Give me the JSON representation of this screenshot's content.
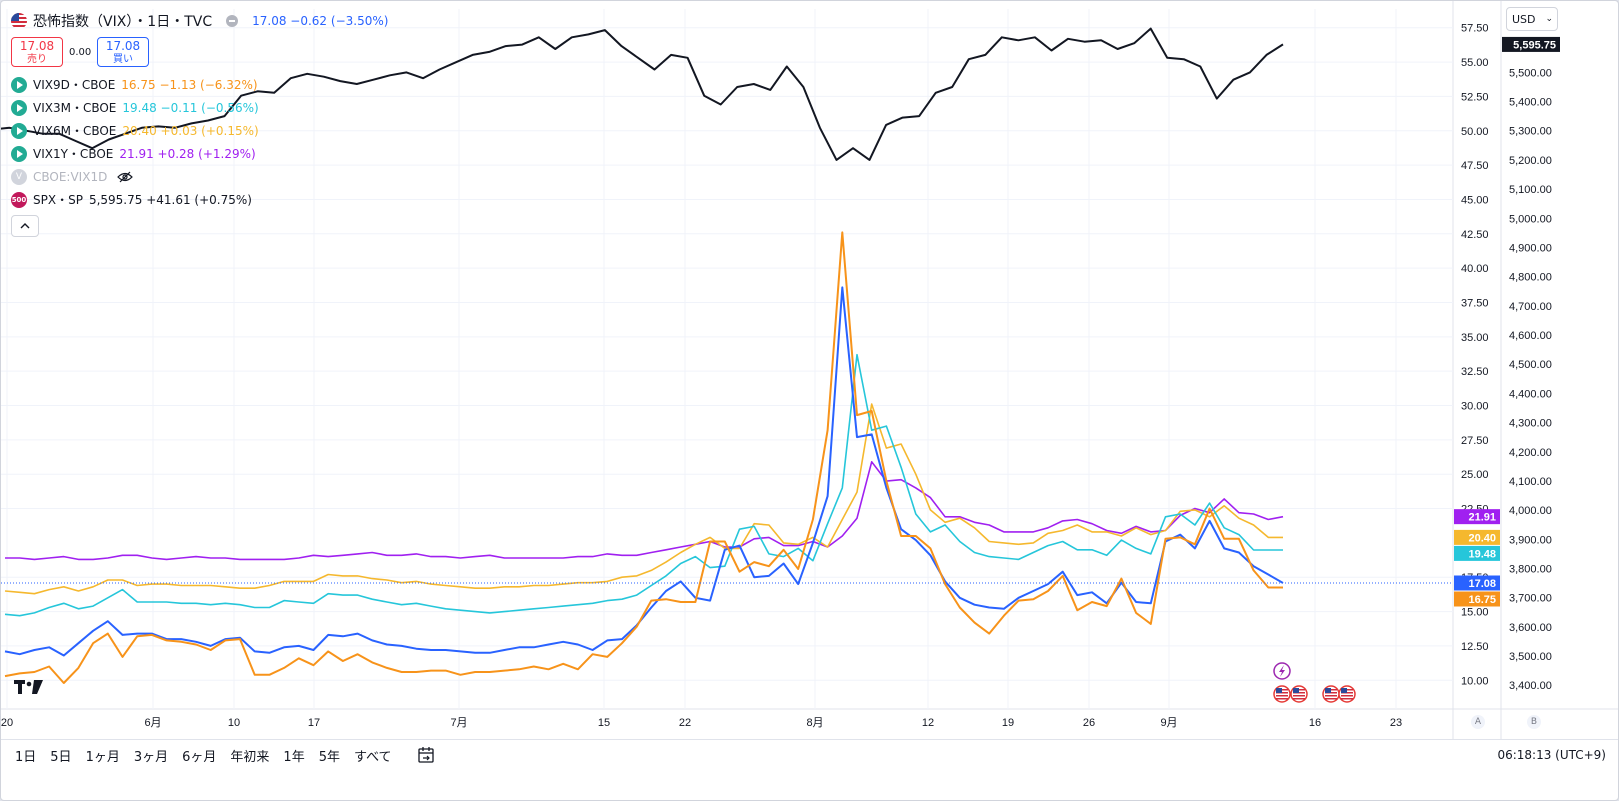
{
  "header": {
    "title": "恐怖指数（VIX）・1日・TVC",
    "last": "17.08",
    "change": "−0.62 (−3.50%)"
  },
  "trade": {
    "sell_price": "17.08",
    "sell_label": "売り",
    "spread": "0.00",
    "buy_price": "17.08",
    "buy_label": "買い"
  },
  "legend_items": [
    {
      "symbol": "VIX9D・CBOE",
      "values": "16.75 −1.13 (−6.32%)",
      "color": "#f7931a"
    },
    {
      "symbol": "VIX3M・CBOE",
      "values": "19.48 −0.11 (−0.56%)",
      "color": "#26c6da"
    },
    {
      "symbol": "VIX6M・CBOE",
      "values": "20.40 +0.03 (+0.15%)",
      "color": "#f5b82e"
    },
    {
      "symbol": "VIX1Y・CBOE",
      "values": "21.91 +0.28 (+1.29%)",
      "color": "#a020f0"
    }
  ],
  "hidden_item": {
    "icon_text": "V",
    "symbol": "CBOE:VIX1D"
  },
  "spx_item": {
    "icon_text": "500",
    "symbol": "SPX・SP",
    "values": "5,595.75 +41.61 (+0.75%)",
    "color": "#131722"
  },
  "currency": "USD",
  "ranges": [
    "1日",
    "5日",
    "1ヶ月",
    "3ヶ月",
    "6ヶ月",
    "年初来",
    "1年",
    "5年",
    "すべて"
  ],
  "clock": "06:18:13 (UTC+9)",
  "scale_buttons": [
    "A",
    "B"
  ],
  "chart_data": {
    "type": "line",
    "x_tick_labels": [
      "20",
      "6月",
      "10",
      "17",
      "7月",
      "15",
      "22",
      "8月",
      "12",
      "19",
      "26",
      "9月",
      "16",
      "23"
    ],
    "left_axis": {
      "ticks": [
        "57.50",
        "55.00",
        "52.50",
        "50.00",
        "47.50",
        "45.00",
        "42.50",
        "40.00",
        "37.50",
        "35.00",
        "32.50",
        "30.00",
        "27.50",
        "25.00",
        "22.50",
        "17.50",
        "15.00",
        "12.50",
        "10.00"
      ],
      "range": [
        9.0,
        58.5
      ]
    },
    "right_axis": {
      "ticks": [
        "5,500.00",
        "5,400.00",
        "5,300.00",
        "5,200.00",
        "5,100.00",
        "5,000.00",
        "4,900.00",
        "4,800.00",
        "4,700.00",
        "4,600.00",
        "4,500.00",
        "4,400.00",
        "4,300.00",
        "4,200.00",
        "4,100.00",
        "4,000.00",
        "3,900.00",
        "3,800.00",
        "3,700.00",
        "3,600.00",
        "3,500.00",
        "3,400.00"
      ],
      "range": [
        3370,
        5700
      ]
    },
    "axis_labels": [
      {
        "text": "21.91",
        "color": "#a020f0",
        "value": 21.91
      },
      {
        "text": "20.40",
        "color": "#f5b82e",
        "value": 20.4
      },
      {
        "text": "19.48",
        "color": "#26c6da",
        "value": 19.48
      },
      {
        "text": "17.08",
        "color": "#2962ff",
        "value": 17.08
      },
      {
        "text": "16.75",
        "color": "#f7931a",
        "value": 16.75
      }
    ],
    "spx_axis_label": {
      "text": "5,595.75",
      "color": "#131722",
      "value": 5595.75
    },
    "series": [
      {
        "name": "VIX1Y・CBOE",
        "color": "#a020f0",
        "width": 1.6,
        "axis": "left",
        "values": [
          18.9,
          18.9,
          18.8,
          18.9,
          19.0,
          18.8,
          18.8,
          18.9,
          19.1,
          19.1,
          18.9,
          18.8,
          18.9,
          19.0,
          18.9,
          18.9,
          18.8,
          18.8,
          18.8,
          18.8,
          18.9,
          19.1,
          19.0,
          19.1,
          19.2,
          19.3,
          19.1,
          19.1,
          19.2,
          19.0,
          19.0,
          18.9,
          19.0,
          19.1,
          18.9,
          18.9,
          18.9,
          18.9,
          18.9,
          19.0,
          19.0,
          19.2,
          19.1,
          19.1,
          19.3,
          19.5,
          19.7,
          19.9,
          20.1,
          19.7,
          19.7,
          20.3,
          20.4,
          19.8,
          19.8,
          20.1,
          19.7,
          20.5,
          21.8,
          25.9,
          24.5,
          24.6,
          24.0,
          23.3,
          21.9,
          21.9,
          21.5,
          21.3,
          20.8,
          20.8,
          20.8,
          21.1,
          21.6,
          21.7,
          21.4,
          20.9,
          20.7,
          21.2,
          20.8,
          20.9,
          22.0,
          22.5,
          22.2,
          23.2,
          22.2,
          22.1,
          21.7,
          21.91
        ]
      },
      {
        "name": "VIX6M・CBOE",
        "color": "#f5b82e",
        "width": 1.6,
        "axis": "left",
        "values": [
          16.5,
          16.4,
          16.3,
          16.6,
          16.8,
          16.5,
          16.8,
          17.3,
          17.3,
          16.9,
          17.0,
          17.0,
          16.9,
          16.9,
          16.9,
          16.8,
          16.7,
          16.7,
          16.9,
          17.2,
          17.2,
          17.2,
          17.7,
          17.6,
          17.6,
          17.4,
          17.3,
          17.1,
          17.2,
          17.0,
          16.9,
          16.8,
          16.7,
          16.7,
          16.8,
          16.8,
          16.9,
          16.9,
          17.0,
          17.1,
          17.1,
          17.2,
          17.5,
          17.6,
          18.0,
          18.6,
          19.3,
          19.9,
          20.4,
          19.6,
          19.6,
          21.4,
          21.3,
          20.0,
          19.9,
          20.4,
          19.7,
          21.7,
          23.7,
          30.1,
          26.9,
          27.2,
          25.0,
          22.4,
          21.5,
          21.8,
          21.1,
          20.1,
          20.0,
          19.9,
          20.0,
          20.7,
          20.9,
          21.3,
          20.8,
          20.8,
          20.5,
          21.1,
          20.6,
          20.9,
          22.3,
          22.4,
          21.9,
          22.7,
          21.8,
          21.3,
          20.4,
          20.4
        ]
      },
      {
        "name": "VIX3M・CBOE",
        "color": "#26c6da",
        "width": 1.6,
        "axis": "left",
        "values": [
          14.8,
          14.7,
          14.9,
          15.3,
          15.6,
          15.2,
          15.4,
          16.0,
          16.6,
          15.7,
          15.7,
          15.7,
          15.6,
          15.6,
          15.5,
          15.6,
          15.5,
          15.3,
          15.3,
          15.8,
          15.7,
          15.6,
          16.3,
          16.2,
          16.2,
          15.9,
          15.7,
          15.5,
          15.6,
          15.4,
          15.2,
          15.1,
          15.0,
          14.9,
          15.0,
          15.1,
          15.2,
          15.3,
          15.4,
          15.5,
          15.6,
          15.8,
          15.9,
          16.2,
          16.9,
          17.6,
          18.5,
          19.0,
          18.2,
          18.3,
          21.0,
          21.2,
          19.2,
          19.0,
          19.6,
          18.7,
          21.4,
          24.0,
          33.7,
          28.2,
          28.5,
          25.5,
          22.1,
          20.8,
          21.3,
          20.1,
          19.3,
          19.0,
          18.9,
          18.8,
          19.3,
          19.8,
          20.1,
          19.5,
          19.5,
          19.1,
          20.2,
          19.6,
          19.2,
          21.9,
          22.1,
          21.3,
          22.9,
          21.1,
          20.6,
          19.48,
          19.48,
          19.48
        ]
      },
      {
        "name": "恐怖指数（VIX）・1日・TVC",
        "color": "#2962ff",
        "width": 2.0,
        "axis": "left",
        "values": [
          12.1,
          11.9,
          12.2,
          12.4,
          11.8,
          12.7,
          13.6,
          14.3,
          13.3,
          13.4,
          13.4,
          13.0,
          13.0,
          12.8,
          12.5,
          13.0,
          13.1,
          12.1,
          12.0,
          12.4,
          12.5,
          12.2,
          13.3,
          13.2,
          13.4,
          12.9,
          12.6,
          12.5,
          12.3,
          12.2,
          12.2,
          12.1,
          12.0,
          12.0,
          12.2,
          12.4,
          12.4,
          12.6,
          12.8,
          12.6,
          12.2,
          12.9,
          13.0,
          14.0,
          15.3,
          16.5,
          17.2,
          16.0,
          15.8,
          19.5,
          19.8,
          17.5,
          17.6,
          18.5,
          17.0,
          20.0,
          23.4,
          38.6,
          27.7,
          27.9,
          24.0,
          21.0,
          20.2,
          19.1,
          17.2,
          16.0,
          15.5,
          15.3,
          15.2,
          16.0,
          16.5,
          17.0,
          17.9,
          16.2,
          16.4,
          15.6,
          17.1,
          15.7,
          15.6,
          20.1,
          20.6,
          19.6,
          21.6,
          19.6,
          19.3,
          18.3,
          17.7,
          17.08
        ]
      },
      {
        "name": "VIX9D・CBOE",
        "color": "#f7931a",
        "width": 2.0,
        "axis": "left",
        "values": [
          10.3,
          10.5,
          10.6,
          11.0,
          9.8,
          10.9,
          12.7,
          13.4,
          11.7,
          13.2,
          13.3,
          12.9,
          12.8,
          12.6,
          12.2,
          12.9,
          13.0,
          10.4,
          10.4,
          10.9,
          11.6,
          11.1,
          12.1,
          11.4,
          11.9,
          11.3,
          10.9,
          10.6,
          10.6,
          10.7,
          10.7,
          10.4,
          10.6,
          10.6,
          10.7,
          10.8,
          11.0,
          10.8,
          11.2,
          10.8,
          11.9,
          11.7,
          12.7,
          13.9,
          15.8,
          15.9,
          15.7,
          15.7,
          20.1,
          20.1,
          17.9,
          18.6,
          18.3,
          19.5,
          18.1,
          21.7,
          28.2,
          42.6,
          29.3,
          29.6,
          24.5,
          20.5,
          20.5,
          19.6,
          17.0,
          15.3,
          14.2,
          13.4,
          14.7,
          15.8,
          15.9,
          16.5,
          17.6,
          15.1,
          15.7,
          15.4,
          17.4,
          14.9,
          14.1,
          20.3,
          20.4,
          19.9,
          22.5,
          20.3,
          20.3,
          18.0,
          16.75,
          16.75
        ]
      },
      {
        "name": "SPX・SP",
        "color": "#131722",
        "width": 2.0,
        "axis": "right",
        "values": [
          5305,
          5310,
          5300,
          5290,
          5290,
          5265,
          5240,
          5270,
          5290,
          5310,
          5315,
          5310,
          5325,
          5335,
          5350,
          5420,
          5435,
          5430,
          5480,
          5495,
          5485,
          5470,
          5460,
          5475,
          5490,
          5500,
          5480,
          5510,
          5535,
          5560,
          5570,
          5590,
          5595,
          5620,
          5580,
          5620,
          5630,
          5645,
          5590,
          5550,
          5510,
          5560,
          5550,
          5420,
          5390,
          5450,
          5460,
          5440,
          5520,
          5450,
          5310,
          5200,
          5240,
          5200,
          5320,
          5345,
          5350,
          5430,
          5450,
          5545,
          5560,
          5620,
          5610,
          5620,
          5575,
          5615,
          5605,
          5610,
          5580,
          5600,
          5650,
          5550,
          5545,
          5520,
          5410,
          5475,
          5500,
          5560,
          5595.75
        ]
      }
    ]
  }
}
